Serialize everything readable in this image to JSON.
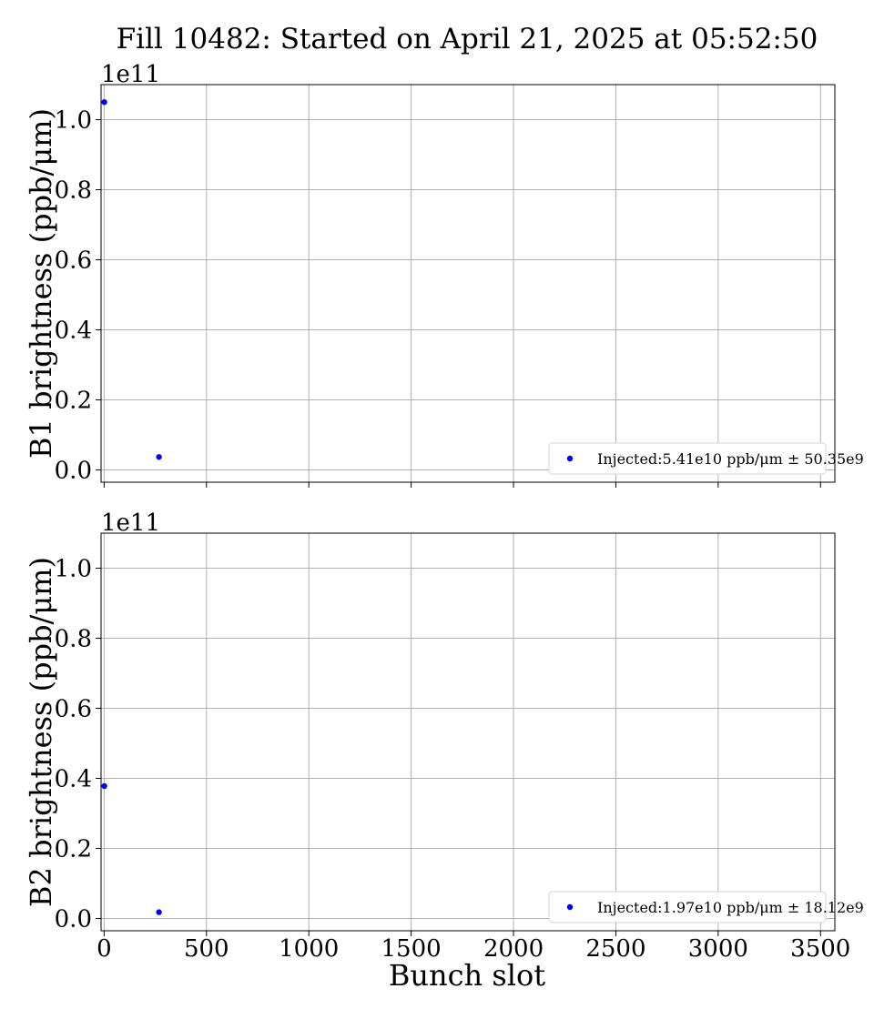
{
  "figure": {
    "title": "Fill 10482: Started on April 21, 2025 at 05:52:50",
    "xlabel": "Bunch slot"
  },
  "chart_data": [
    {
      "type": "scatter",
      "ylabel": "B1 brightness (ppb/μm)",
      "offset_label": "1e11",
      "x_ticks": [
        0,
        500,
        1000,
        1500,
        2000,
        2500,
        3000,
        3500
      ],
      "x_tick_labels": [
        "0",
        "500",
        "1000",
        "1500",
        "2000",
        "2500",
        "3000",
        "3500"
      ],
      "show_x_tick_labels": false,
      "y_ticks": [
        0.0,
        0.2,
        0.4,
        0.6,
        0.8,
        1.0
      ],
      "y_tick_labels": [
        "0.0",
        "0.2",
        "0.4",
        "0.6",
        "0.8",
        "1.0"
      ],
      "xlim": [
        -15,
        3570
      ],
      "ylim": [
        -0.035,
        1.1
      ],
      "grid": true,
      "legend_position": "lower-right",
      "color": "#0000ff",
      "series": [
        {
          "name": "Injected:5.41e10 ppb/μm ± 50.35e9",
          "x": [
            1,
            268
          ],
          "y": [
            1.05,
            0.037
          ]
        }
      ]
    },
    {
      "type": "scatter",
      "ylabel": "B2 brightness (ppb/μm)",
      "offset_label": "1e11",
      "x_ticks": [
        0,
        500,
        1000,
        1500,
        2000,
        2500,
        3000,
        3500
      ],
      "x_tick_labels": [
        "0",
        "500",
        "1000",
        "1500",
        "2000",
        "2500",
        "3000",
        "3500"
      ],
      "show_x_tick_labels": true,
      "y_ticks": [
        0.0,
        0.2,
        0.4,
        0.6,
        0.8,
        1.0
      ],
      "y_tick_labels": [
        "0.0",
        "0.2",
        "0.4",
        "0.6",
        "0.8",
        "1.0"
      ],
      "xlim": [
        -15,
        3570
      ],
      "ylim": [
        -0.035,
        1.1
      ],
      "grid": true,
      "legend_position": "lower-right",
      "color": "#0000ff",
      "series": [
        {
          "name": "Injected:1.97e10 ppb/μm ± 18.12e9",
          "x": [
            1,
            268
          ],
          "y": [
            0.378,
            0.018
          ]
        }
      ]
    }
  ]
}
